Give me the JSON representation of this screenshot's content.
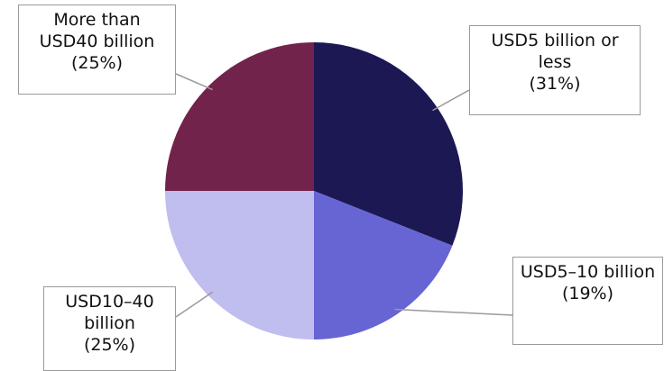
{
  "chart_data": {
    "type": "pie",
    "categories": [
      "USD5 billion or less",
      "USD5–10 billion",
      "USD10–40 billion",
      "More than USD40 billion"
    ],
    "values": [
      31,
      19,
      25,
      25
    ],
    "value_labels": [
      "(31%)",
      "(19%)",
      "(25%)",
      "(25%)"
    ],
    "colors": [
      "#1b1854",
      "#6764d4",
      "#c0bdef",
      "#72234b"
    ]
  }
}
